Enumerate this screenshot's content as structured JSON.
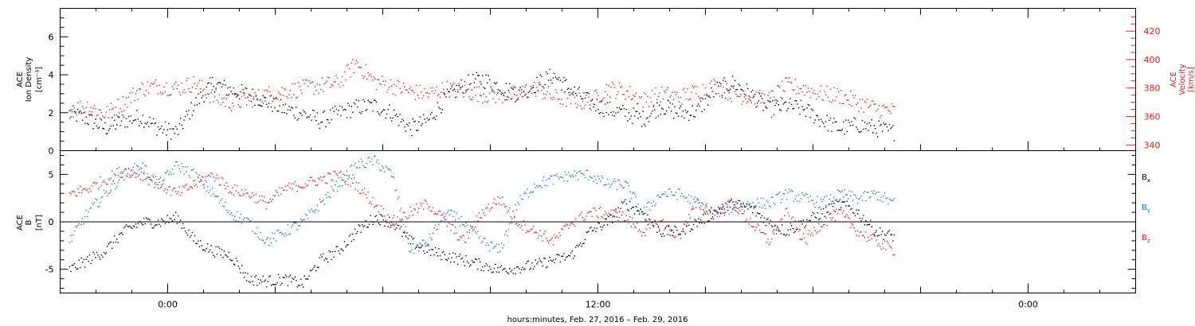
{
  "chart_data": [
    {
      "type": "scatter",
      "panel": "top",
      "ylabel_line1": "ACE",
      "ylabel_line2": "Ion Density",
      "ylabel_units": "[cm⁻³]",
      "y2label_line1": "ACE",
      "y2label_line2": "Velocity",
      "y2label_units": "[km/s]",
      "ylim": [
        0,
        7.5
      ],
      "y2lim": [
        336,
        436
      ],
      "yticks": [
        0,
        2,
        4,
        6
      ],
      "y2ticks": [
        340,
        360,
        380,
        400,
        420
      ],
      "series": [
        {
          "color": "#000000",
          "axis": "left",
          "x": [
            -5.5,
            -4.5,
            -3.5,
            -2.5,
            -1.5,
            -0.5,
            0.5,
            1.5,
            2.5,
            3.5,
            4.5,
            5.5,
            6.5,
            7.5,
            8.5,
            9.5,
            10.5,
            11.5,
            12.5,
            13.5,
            14.5,
            15.5,
            16.5,
            17.5,
            18.5,
            19.5,
            20.5,
            21.5,
            22.5,
            23.5,
            24.5,
            25.5,
            26.5,
            27.5,
            28.5,
            29.5,
            30.5,
            31.5,
            32.5,
            33.5,
            34.5,
            35.5,
            36.5,
            37.5,
            38.5,
            39.5,
            40.5
          ],
          "y": [
            2.0,
            1.7,
            1.2,
            1.6,
            1.8,
            1.2,
            1.0,
            2.5,
            3.6,
            3.2,
            3.0,
            2.6,
            2.2,
            2.0,
            1.6,
            2.0,
            2.3,
            2.4,
            2.0,
            1.2,
            1.6,
            2.8,
            3.5,
            3.8,
            3.4,
            3.0,
            3.5,
            4.0,
            3.2,
            2.6,
            2.2,
            2.0,
            1.7,
            2.4,
            2.0,
            2.1,
            3.2,
            3.6,
            3.0,
            2.2,
            2.4,
            2.2,
            1.6,
            1.2,
            1.4,
            1.2,
            1.0
          ]
        },
        {
          "color": "#e02020",
          "axis": "right",
          "x": [
            -5.5,
            -4.5,
            -3.5,
            -2.5,
            -1.5,
            -0.5,
            0.5,
            1.5,
            2.5,
            3.5,
            4.5,
            5.5,
            6.5,
            7.5,
            8.5,
            9.5,
            10.5,
            11.5,
            12.5,
            13.5,
            14.5,
            15.5,
            16.5,
            17.5,
            18.5,
            19.5,
            20.5,
            21.5,
            22.5,
            23.5,
            24.5,
            25.5,
            26.5,
            27.5,
            28.5,
            29.5,
            30.5,
            31.5,
            32.5,
            33.5,
            34.5,
            35.5,
            36.5,
            37.5,
            38.5,
            39.5,
            40.5
          ],
          "y": [
            365,
            368,
            362,
            370,
            380,
            382,
            380,
            384,
            374,
            370,
            372,
            376,
            378,
            380,
            382,
            384,
            398,
            385,
            382,
            378,
            376,
            380,
            378,
            376,
            375,
            376,
            380,
            374,
            372,
            370,
            380,
            378,
            372,
            376,
            374,
            378,
            382,
            376,
            374,
            372,
            382,
            380,
            376,
            375,
            370,
            366,
            364
          ]
        }
      ]
    },
    {
      "type": "scatter",
      "panel": "bottom",
      "ylabel_line1": "ACE",
      "ylabel_line2": "B",
      "ylabel_units": "[nT]",
      "ylim": [
        -7.5,
        7.5
      ],
      "yticks": [
        -5,
        0,
        5
      ],
      "zero_line": true,
      "xlabel": "hours:minutes, Feb. 27, 2016 – Feb. 29, 2016",
      "xlim": [
        -6,
        54
      ],
      "xticks": [
        0,
        24,
        48
      ],
      "xtick_labels": [
        "0:00",
        "12:00",
        "0:00"
      ],
      "series": [
        {
          "name": "Bx",
          "color": "#000000",
          "x": [
            -5.5,
            -4.5,
            -3.5,
            -2.5,
            -1.5,
            -0.5,
            0.5,
            1.5,
            2.5,
            3.5,
            4.5,
            5.5,
            6.5,
            7.5,
            8.5,
            9.5,
            10.5,
            11.5,
            12.5,
            13.5,
            14.5,
            15.5,
            16.5,
            17.5,
            18.5,
            19.5,
            20.5,
            21.5,
            22.5,
            23.5,
            24.5,
            25.5,
            26.5,
            27.5,
            28.5,
            29.5,
            30.5,
            31.5,
            32.5,
            33.5,
            34.5,
            35.5,
            36.5,
            37.5,
            38.5,
            39.5,
            40.5
          ],
          "y": [
            -5.0,
            -4.0,
            -3.0,
            -1.0,
            0.0,
            0.0,
            0.5,
            -2.0,
            -3.0,
            -3.5,
            -6.0,
            -6.2,
            -6.0,
            -6.5,
            -4.0,
            -3.0,
            -1.0,
            0.5,
            0.0,
            -2.0,
            -3.0,
            -3.5,
            -4.0,
            -4.5,
            -5.0,
            -4.8,
            -4.5,
            -4.0,
            -3.5,
            -1.0,
            0.0,
            2.0,
            1.0,
            -1.0,
            -1.0,
            0.0,
            1.0,
            2.0,
            1.5,
            0.0,
            -1.0,
            0.0,
            1.0,
            2.0,
            1.0,
            -1.0,
            -1.5
          ]
        },
        {
          "name": "By",
          "color": "#1f77d4",
          "x": [
            -5.5,
            -4.5,
            -3.5,
            -2.5,
            -1.5,
            -0.5,
            0.5,
            1.5,
            2.5,
            3.5,
            4.5,
            5.5,
            6.5,
            7.5,
            8.5,
            9.5,
            10.5,
            11.5,
            12.5,
            13.5,
            14.5,
            15.5,
            16.5,
            17.5,
            18.5,
            19.5,
            20.5,
            21.5,
            22.5,
            23.5,
            24.5,
            25.5,
            26.5,
            27.5,
            28.5,
            29.5,
            30.5,
            31.5,
            32.5,
            33.5,
            34.5,
            35.5,
            36.5,
            37.5,
            38.5,
            39.5,
            40.5
          ],
          "y": [
            -2.0,
            1.0,
            3.0,
            5.0,
            6.0,
            4.0,
            6.0,
            5.0,
            3.0,
            1.0,
            0.0,
            -2.0,
            -1.0,
            0.0,
            2.0,
            4.0,
            6.0,
            6.5,
            5.0,
            -3.0,
            -2.0,
            1.0,
            0.0,
            -2.0,
            -3.0,
            2.0,
            4.0,
            4.5,
            5.0,
            5.0,
            4.0,
            4.0,
            1.0,
            3.0,
            3.0,
            2.0,
            1.0,
            1.5,
            2.0,
            2.0,
            3.0,
            2.5,
            2.0,
            3.0,
            2.5,
            3.0,
            2.0
          ]
        },
        {
          "name": "Bz",
          "color": "#e02020",
          "x": [
            -5.5,
            -4.5,
            -3.5,
            -2.5,
            -1.5,
            -0.5,
            0.5,
            1.5,
            2.5,
            3.5,
            4.5,
            5.5,
            6.5,
            7.5,
            8.5,
            9.5,
            10.5,
            11.5,
            12.5,
            13.5,
            14.5,
            15.5,
            16.5,
            17.5,
            18.5,
            19.5,
            20.5,
            21.5,
            22.5,
            23.5,
            24.5,
            25.5,
            26.5,
            27.5,
            28.5,
            29.5,
            30.5,
            31.5,
            32.5,
            33.5,
            34.5,
            35.5,
            36.5,
            37.5,
            38.5,
            39.5,
            40.5
          ],
          "y": [
            3.0,
            3.5,
            4.5,
            5.5,
            5.0,
            4.0,
            3.0,
            4.0,
            5.0,
            3.5,
            3.0,
            2.0,
            3.5,
            4.0,
            4.5,
            5.0,
            4.0,
            2.0,
            0.0,
            1.0,
            2.0,
            0.0,
            -2.0,
            1.0,
            2.5,
            0.0,
            -1.0,
            -2.0,
            0.0,
            1.0,
            1.0,
            0.5,
            -1.0,
            0.0,
            -1.5,
            2.0,
            1.0,
            2.0,
            0.0,
            -2.0,
            1.0,
            -2.0,
            0.0,
            1.0,
            -1.0,
            -2.0,
            -3.0
          ]
        }
      ]
    }
  ],
  "legend": {
    "bx": "B",
    "bx_sub": "x",
    "by": "B",
    "by_sub": "y",
    "bz": "B",
    "bz_sub": "z"
  }
}
